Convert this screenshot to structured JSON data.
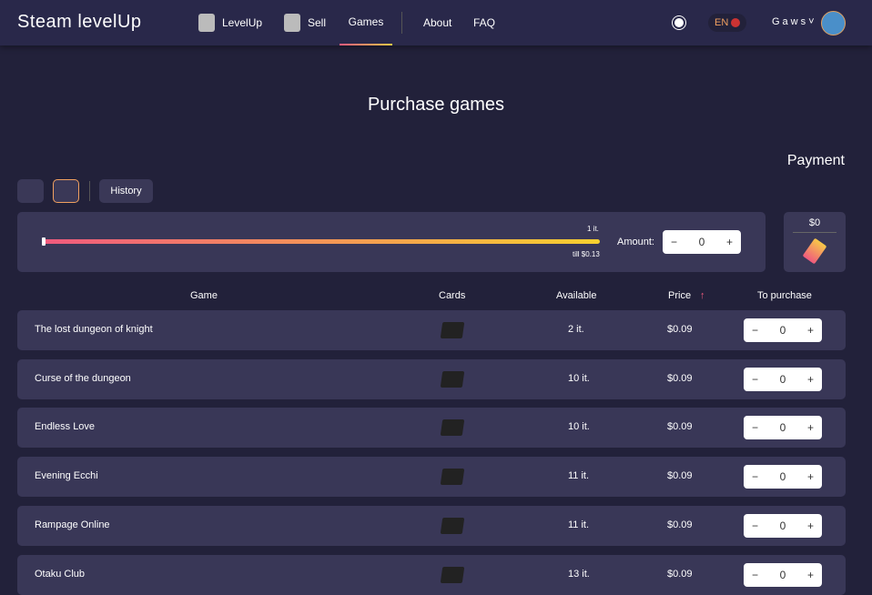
{
  "header": {
    "logo": "Steam levelUp",
    "nav": [
      "LevelUp",
      "Sell",
      "Games",
      "About",
      "FAQ"
    ],
    "lang": "EN",
    "user": "Gaws"
  },
  "page": {
    "title": "Purchase games",
    "payment": "Payment",
    "history": "History"
  },
  "slider": {
    "items": "1 it.",
    "till": "till $0.13",
    "amount_label": "Amount:",
    "amount": "0",
    "value_fraction": 0
  },
  "payment_box": {
    "total": "$0"
  },
  "table": {
    "headers": [
      "Game",
      "Cards",
      "Available",
      "Price",
      "To purchase"
    ],
    "rows": [
      {
        "game": "The lost dungeon of knight",
        "available": "2 it.",
        "price": "$0.09",
        "qty": "0"
      },
      {
        "game": "Curse of the dungeon",
        "available": "10 it.",
        "price": "$0.09",
        "qty": "0"
      },
      {
        "game": "Endless Love",
        "available": "10 it.",
        "price": "$0.09",
        "qty": "0"
      },
      {
        "game": "Evening Ecchi",
        "available": "11 it.",
        "price": "$0.09",
        "qty": "0"
      },
      {
        "game": "Rampage Online",
        "available": "11 it.",
        "price": "$0.09",
        "qty": "0"
      },
      {
        "game": "Otaku Club",
        "available": "13 it.",
        "price": "$0.09",
        "qty": "0"
      }
    ]
  }
}
